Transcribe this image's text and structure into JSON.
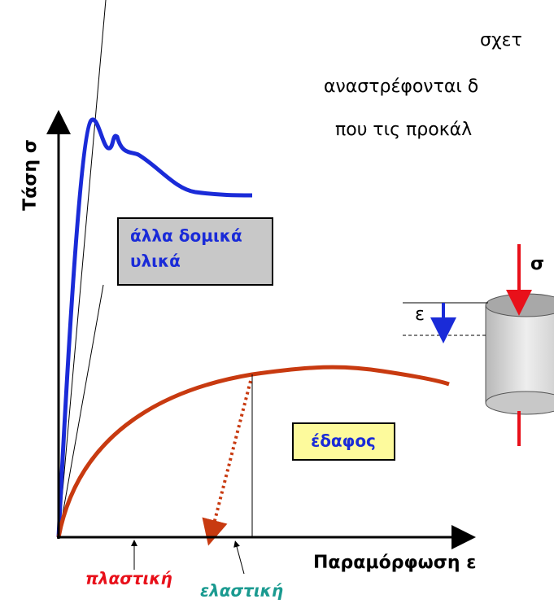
{
  "header": {
    "lines": [
      "σχετ",
      "αναστρέφονται δ",
      "που τις προκάλ"
    ]
  },
  "axes": {
    "y_label": "Τάση σ",
    "x_label": "Παραμόρφωση ε"
  },
  "boxes": {
    "other_materials": [
      "άλλα δομικά",
      "υλικά"
    ],
    "soil": "έδαφος"
  },
  "specimen": {
    "stress": "σ",
    "strain": "ε"
  },
  "notes": {
    "plastic": "πλαστική",
    "elastic": "ελαστική"
  }
}
